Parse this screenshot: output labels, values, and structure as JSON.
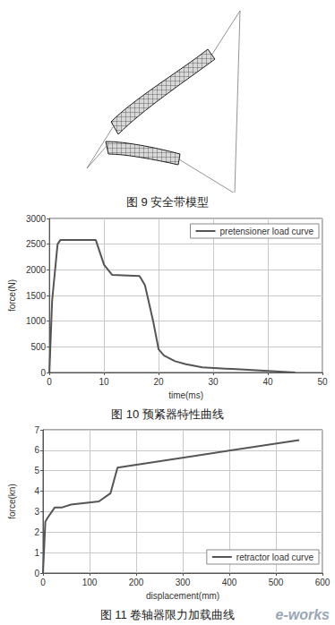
{
  "figures": [
    {
      "caption": "图 9 安全带模型"
    }
  ],
  "chart_data": [
    {
      "type": "line",
      "title": "图 10 预紧器特性曲线",
      "x_label": "time(ms)",
      "y_label": "force(N)",
      "x": [
        0,
        0.5,
        1.5,
        2,
        8.5,
        10,
        11.5,
        16.5,
        17.5,
        19,
        20,
        21,
        23,
        25,
        28,
        35,
        45
      ],
      "series": [
        {
          "name": "pretensioner load curve",
          "color": "#555555",
          "values": [
            0,
            1400,
            2500,
            2580,
            2580,
            2100,
            1900,
            1880,
            1700,
            1000,
            450,
            330,
            220,
            160,
            100,
            60,
            0
          ]
        }
      ],
      "xlim": [
        0,
        50
      ],
      "xticks": [
        0,
        10,
        20,
        30,
        40,
        50
      ],
      "ylim": [
        0,
        3000
      ],
      "yticks": [
        0,
        500,
        1000,
        1500,
        2000,
        2500,
        3000
      ],
      "grid": true,
      "legend": "upper right",
      "marker": "none"
    },
    {
      "type": "line",
      "title": "图 11 卷轴器限力加载曲线",
      "x_label": "displacement(mm)",
      "y_label": "force(kn)",
      "x": [
        0,
        5,
        10,
        25,
        40,
        60,
        120,
        145,
        160,
        550
      ],
      "series": [
        {
          "name": "retractor load curve",
          "color": "#555555",
          "values": [
            0,
            2.5,
            2.7,
            3.2,
            3.2,
            3.35,
            3.5,
            3.9,
            5.15,
            6.5
          ]
        }
      ],
      "xlim": [
        0,
        600
      ],
      "xticks": [
        0,
        100,
        200,
        300,
        400,
        500,
        600
      ],
      "ylim": [
        0,
        7
      ],
      "yticks": [
        0,
        1,
        2,
        3,
        4,
        5,
        6,
        7
      ],
      "grid": true,
      "legend": "lower right",
      "marker": "none"
    }
  ],
  "watermark": "e-works"
}
